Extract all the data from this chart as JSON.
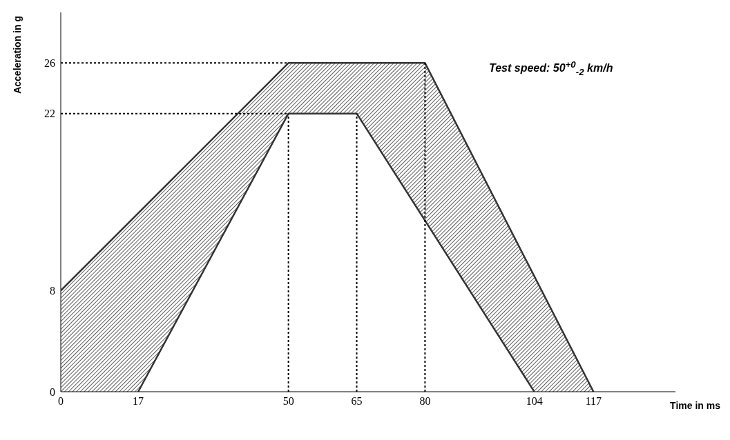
{
  "chart_data": {
    "type": "area",
    "xlabel": "Time in ms",
    "ylabel": "Acceleration in g",
    "annotations": [
      "Test speed: 50$^{+0}$$_{-2}$ km/h"
    ],
    "xlim": [
      0,
      135
    ],
    "ylim": [
      0,
      30
    ],
    "xticks": [
      0,
      17,
      50,
      65,
      80,
      104,
      117
    ],
    "yticks": [
      0,
      8,
      22,
      26
    ],
    "series": [
      {
        "color": "#333333",
        "x": [
          0,
          50,
          80,
          117
        ],
        "values": [
          8,
          26,
          26,
          0
        ]
      },
      {
        "color": "#333333",
        "x": [
          17,
          50,
          65,
          104
        ],
        "values": [
          0,
          22,
          22,
          0
        ]
      }
    ],
    "ref_lines": [
      {
        "axis": "y",
        "value": 26,
        "line_style": "dashed",
        "color": "#000000"
      },
      {
        "axis": "y",
        "value": 22,
        "line_style": "dashed",
        "color": "#000000"
      },
      {
        "axis": "x",
        "value": 50,
        "line_style": "dashed",
        "color": "#000000"
      },
      {
        "axis": "x",
        "value": 65,
        "line_style": "dashed",
        "color": "#000000"
      },
      {
        "axis": "x",
        "value": 80,
        "line_style": "dashed",
        "color": "#000000"
      }
    ]
  }
}
